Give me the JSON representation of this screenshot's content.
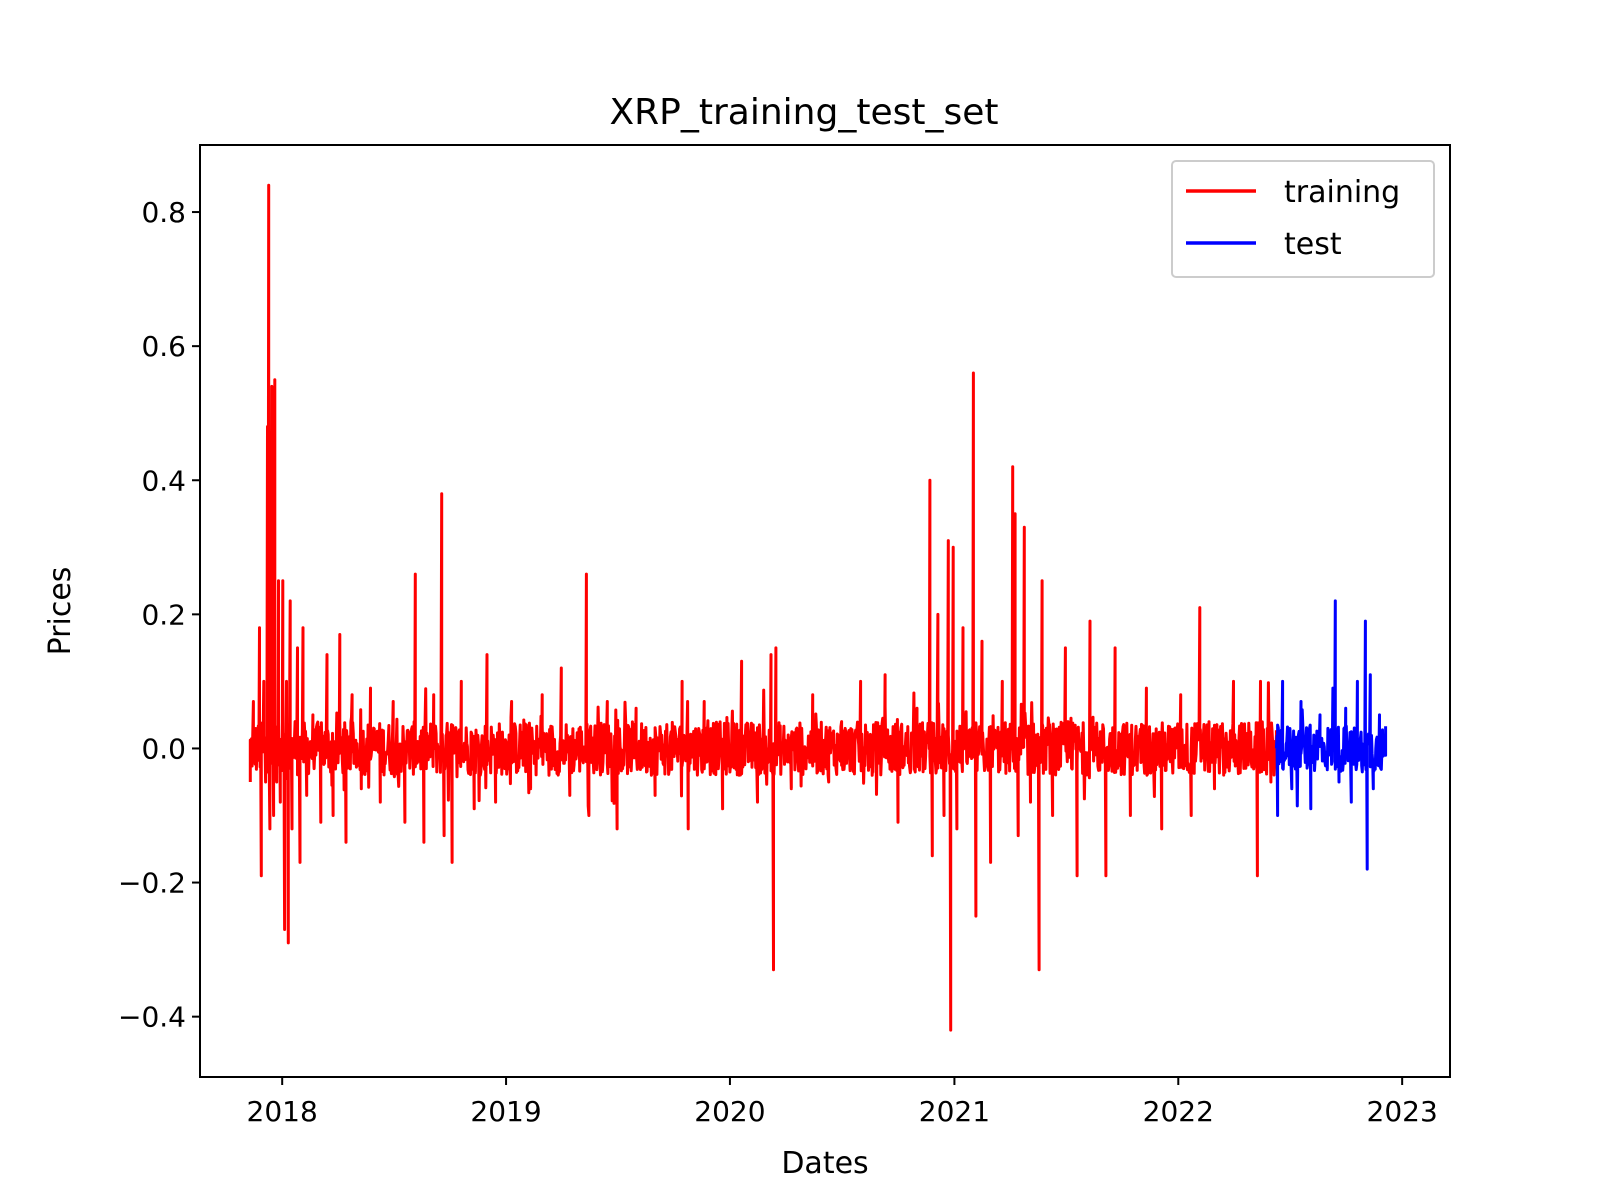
{
  "chart_data": {
    "type": "line",
    "title": "XRP_training_test_set",
    "xlabel": "Dates",
    "ylabel": "Prices",
    "x_ticks": [
      "2018",
      "2019",
      "2020",
      "2021",
      "2022",
      "2023"
    ],
    "y_ticks": [
      "−0.4",
      "−0.2",
      "0.0",
      "0.2",
      "0.4",
      "0.6",
      "0.8"
    ],
    "xlim": [
      "2017-08-20",
      "2023-03-20"
    ],
    "ylim": [
      -0.49,
      0.9
    ],
    "grid": false,
    "legend_position": "top-right",
    "x_range": [
      "2017-11-10",
      "2022-12-05"
    ],
    "split_date": "2022-06-10",
    "series": [
      {
        "name": "training",
        "color": "#ff0000",
        "x_start": "2017-11-10",
        "x_end": "2022-06-10",
        "peaks": [
          [
            "2017-11-10",
            -0.05
          ],
          [
            "2017-11-15",
            0.07
          ],
          [
            "2017-11-20",
            -0.02
          ],
          [
            "2017-11-25",
            0.18
          ],
          [
            "2017-11-28",
            -0.19
          ],
          [
            "2017-12-02",
            0.1
          ],
          [
            "2017-12-05",
            -0.05
          ],
          [
            "2017-12-08",
            0.48
          ],
          [
            "2017-12-10",
            0.84
          ],
          [
            "2017-12-12",
            -0.12
          ],
          [
            "2017-12-15",
            0.54
          ],
          [
            "2017-12-18",
            -0.1
          ],
          [
            "2017-12-20",
            0.55
          ],
          [
            "2017-12-23",
            -0.05
          ],
          [
            "2017-12-26",
            0.25
          ],
          [
            "2017-12-29",
            -0.08
          ],
          [
            "2018-01-02",
            0.25
          ],
          [
            "2018-01-05",
            -0.27
          ],
          [
            "2018-01-08",
            0.1
          ],
          [
            "2018-01-11",
            -0.29
          ],
          [
            "2018-01-14",
            0.22
          ],
          [
            "2018-01-17",
            -0.12
          ],
          [
            "2018-01-22",
            0.04
          ],
          [
            "2018-01-26",
            0.15
          ],
          [
            "2018-01-30",
            -0.17
          ],
          [
            "2018-02-04",
            0.18
          ],
          [
            "2018-02-10",
            -0.07
          ],
          [
            "2018-02-20",
            0.05
          ],
          [
            "2018-03-05",
            -0.11
          ],
          [
            "2018-03-15",
            0.14
          ],
          [
            "2018-03-25",
            -0.1
          ],
          [
            "2018-04-05",
            0.17
          ],
          [
            "2018-04-15",
            -0.14
          ],
          [
            "2018-04-25",
            0.08
          ],
          [
            "2018-05-10",
            -0.06
          ],
          [
            "2018-05-25",
            0.09
          ],
          [
            "2018-06-10",
            -0.08
          ],
          [
            "2018-07-01",
            0.07
          ],
          [
            "2018-07-20",
            -0.11
          ],
          [
            "2018-08-06",
            0.26
          ],
          [
            "2018-08-20",
            -0.14
          ],
          [
            "2018-09-05",
            0.08
          ],
          [
            "2018-09-18",
            0.38
          ],
          [
            "2018-09-22",
            -0.13
          ],
          [
            "2018-10-05",
            -0.17
          ],
          [
            "2018-10-20",
            0.1
          ],
          [
            "2018-11-10",
            -0.09
          ],
          [
            "2018-12-01",
            0.14
          ],
          [
            "2018-12-15",
            -0.08
          ],
          [
            "2019-01-10",
            0.07
          ],
          [
            "2019-02-10",
            -0.06
          ],
          [
            "2019-03-01",
            0.08
          ],
          [
            "2019-04-01",
            0.12
          ],
          [
            "2019-04-15",
            -0.07
          ],
          [
            "2019-05-12",
            0.26
          ],
          [
            "2019-05-16",
            -0.1
          ],
          [
            "2019-06-15",
            0.07
          ],
          [
            "2019-07-01",
            -0.12
          ],
          [
            "2019-08-01",
            0.06
          ],
          [
            "2019-09-01",
            -0.07
          ],
          [
            "2019-10-15",
            0.1
          ],
          [
            "2019-10-25",
            -0.12
          ],
          [
            "2019-11-20",
            0.07
          ],
          [
            "2019-12-20",
            -0.09
          ],
          [
            "2020-01-20",
            0.13
          ],
          [
            "2020-02-15",
            -0.08
          ],
          [
            "2020-03-08",
            0.14
          ],
          [
            "2020-03-12",
            -0.33
          ],
          [
            "2020-03-16",
            0.15
          ],
          [
            "2020-04-10",
            -0.06
          ],
          [
            "2020-05-15",
            0.08
          ],
          [
            "2020-06-10",
            -0.05
          ],
          [
            "2020-07-01",
            0.04
          ],
          [
            "2020-08-01",
            0.1
          ],
          [
            "2020-08-20",
            -0.04
          ],
          [
            "2020-09-10",
            0.11
          ],
          [
            "2020-10-01",
            -0.11
          ],
          [
            "2020-11-01",
            0.06
          ],
          [
            "2020-11-22",
            0.4
          ],
          [
            "2020-11-26",
            -0.16
          ],
          [
            "2020-12-05",
            0.2
          ],
          [
            "2020-12-15",
            -0.1
          ],
          [
            "2020-12-22",
            0.31
          ],
          [
            "2020-12-26",
            -0.42
          ],
          [
            "2020-12-30",
            0.3
          ],
          [
            "2021-01-05",
            -0.12
          ],
          [
            "2021-01-15",
            0.18
          ],
          [
            "2021-02-01",
            0.56
          ],
          [
            "2021-02-05",
            -0.25
          ],
          [
            "2021-02-15",
            0.16
          ],
          [
            "2021-03-01",
            -0.17
          ],
          [
            "2021-03-20",
            0.1
          ],
          [
            "2021-04-06",
            0.42
          ],
          [
            "2021-04-10",
            0.35
          ],
          [
            "2021-04-15",
            -0.13
          ],
          [
            "2021-04-25",
            0.33
          ],
          [
            "2021-05-05",
            -0.08
          ],
          [
            "2021-05-19",
            -0.33
          ],
          [
            "2021-05-24",
            0.25
          ],
          [
            "2021-06-10",
            -0.1
          ],
          [
            "2021-07-01",
            0.15
          ],
          [
            "2021-07-20",
            -0.19
          ],
          [
            "2021-08-10",
            0.19
          ],
          [
            "2021-09-05",
            -0.19
          ],
          [
            "2021-09-20",
            0.15
          ],
          [
            "2021-10-15",
            -0.1
          ],
          [
            "2021-11-10",
            0.09
          ],
          [
            "2021-12-05",
            -0.12
          ],
          [
            "2022-01-05",
            0.08
          ],
          [
            "2022-01-22",
            -0.1
          ],
          [
            "2022-02-05",
            0.21
          ],
          [
            "2022-03-01",
            -0.06
          ],
          [
            "2022-04-01",
            0.1
          ],
          [
            "2022-05-10",
            -0.19
          ],
          [
            "2022-05-15",
            0.1
          ],
          [
            "2022-06-01",
            -0.05
          ],
          [
            "2022-06-10",
            0.02
          ]
        ]
      },
      {
        "name": "test",
        "color": "#0000ff",
        "x_start": "2022-06-10",
        "x_end": "2022-12-05",
        "peaks": [
          [
            "2022-06-12",
            -0.1
          ],
          [
            "2022-06-20",
            0.1
          ],
          [
            "2022-07-05",
            -0.06
          ],
          [
            "2022-07-20",
            0.07
          ],
          [
            "2022-08-05",
            -0.09
          ],
          [
            "2022-08-20",
            0.05
          ],
          [
            "2022-09-10",
            0.09
          ],
          [
            "2022-09-14",
            0.22
          ],
          [
            "2022-09-20",
            -0.05
          ],
          [
            "2022-10-01",
            0.06
          ],
          [
            "2022-10-10",
            -0.08
          ],
          [
            "2022-10-20",
            0.1
          ],
          [
            "2022-11-02",
            0.19
          ],
          [
            "2022-11-05",
            -0.18
          ],
          [
            "2022-11-10",
            0.11
          ],
          [
            "2022-11-15",
            -0.06
          ],
          [
            "2022-11-25",
            0.05
          ],
          [
            "2022-12-05",
            -0.01
          ]
        ]
      }
    ]
  }
}
